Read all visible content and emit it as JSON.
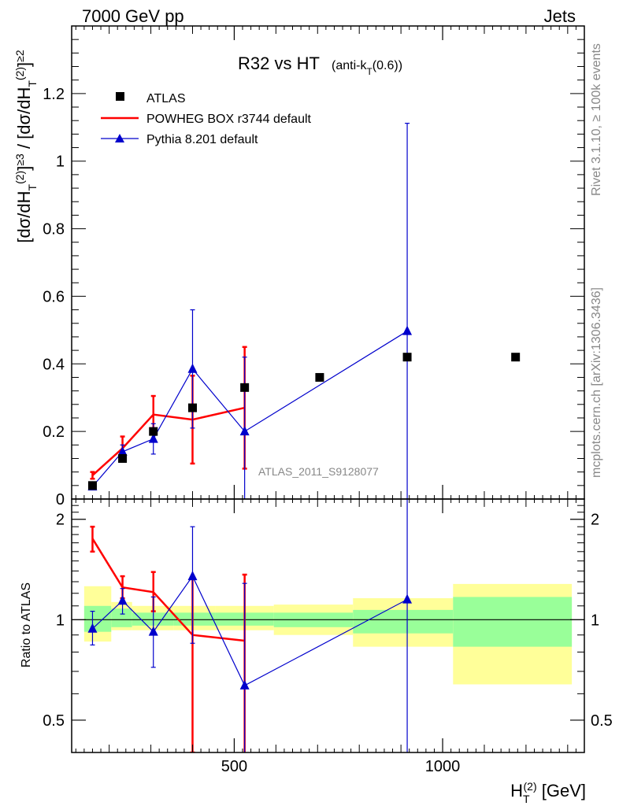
{
  "header": {
    "left": "7000 GeV pp",
    "right": "Jets"
  },
  "side_labels": {
    "rivet": "Rivet 3.1.10, ≥ 100k events",
    "mcplots": "mcplots.cern.ch [arXiv:1306.3436]"
  },
  "watermark": "ATLAS_2011_S9128077",
  "chart_data": [
    {
      "type": "scatter",
      "title": "R32 vs HT",
      "title_suffix": "(anti-k_T(0.6))",
      "ylabel": "[dσ/dH_T^(2)]^{≥3} / [dσ/dH_T^(2)]^{≥2}",
      "xlim": [
        110,
        1340
      ],
      "ylim": [
        0,
        1.4
      ],
      "y_ticks": [
        0,
        0.2,
        0.4,
        0.6,
        0.8,
        1,
        1.2
      ],
      "y_tick_labels": [
        "0",
        "0.2",
        "0.4",
        "0.6",
        "0.8",
        "1",
        "1.2"
      ],
      "legend_position": "top-left",
      "series": [
        {
          "name": "ATLAS",
          "color": "#000000",
          "style": "markers",
          "x": [
            160,
            232,
            306,
            400,
            525,
            705,
            915,
            1175
          ],
          "y": [
            0.04,
            0.12,
            0.2,
            0.27,
            0.33,
            0.36,
            0.42,
            0.42
          ]
        },
        {
          "name": "POWHEG BOX r3744 default",
          "color": "#ff0000",
          "style": "line",
          "x": [
            160,
            232,
            306,
            400,
            525
          ],
          "y": [
            0.07,
            0.15,
            0.25,
            0.235,
            0.27
          ],
          "err": [
            0.01,
            0.035,
            0.055,
            0.13,
            0.18
          ]
        },
        {
          "name": "Pythia 8.201 default",
          "color": "#0000cc",
          "style": "line-markers",
          "x": [
            160,
            232,
            306,
            400,
            525,
            915
          ],
          "y": [
            0.037,
            0.14,
            0.178,
            0.385,
            0.2,
            0.497
          ],
          "err": [
            0.008,
            0.02,
            0.045,
            0.175,
            0.22,
            0.615
          ]
        }
      ]
    },
    {
      "type": "scatter",
      "ylabel": "Ratio to ATLAS",
      "xlabel": "H_T^(2) [GeV]",
      "xlim": [
        110,
        1340
      ],
      "ylim": [
        0.4,
        2.3
      ],
      "log_y": true,
      "x_ticks": [
        500,
        1000
      ],
      "x_tick_labels": [
        "500",
        "1000"
      ],
      "y_ticks": [
        0.5,
        1,
        2
      ],
      "y_tick_labels": [
        "0.5",
        "1",
        "2"
      ],
      "reference_line": 1,
      "bands": {
        "bins": [
          [
            140,
            205
          ],
          [
            205,
            255
          ],
          [
            255,
            355
          ],
          [
            355,
            455
          ],
          [
            455,
            595
          ],
          [
            595,
            785
          ],
          [
            785,
            1025
          ],
          [
            1025,
            1310
          ]
        ],
        "inner": [
          [
            0.92,
            1.1
          ],
          [
            0.95,
            1.08
          ],
          [
            0.96,
            1.05
          ],
          [
            0.96,
            1.05
          ],
          [
            0.96,
            1.05
          ],
          [
            0.95,
            1.05
          ],
          [
            0.91,
            1.07
          ],
          [
            0.83,
            1.17
          ]
        ],
        "outer": [
          [
            0.86,
            1.26
          ],
          [
            0.93,
            1.13
          ],
          [
            0.93,
            1.1
          ],
          [
            0.93,
            1.1
          ],
          [
            0.93,
            1.1
          ],
          [
            0.9,
            1.11
          ],
          [
            0.83,
            1.16
          ],
          [
            0.64,
            1.28
          ]
        ],
        "inner_color": "#99ff99",
        "outer_color": "#ffff99"
      },
      "series": [
        {
          "name": "POWHEG BOX r3744 default",
          "color": "#ff0000",
          "x": [
            160,
            232,
            306,
            400,
            525
          ],
          "y": [
            1.75,
            1.25,
            1.21,
            0.9,
            0.865
          ],
          "err_low": [
            0.15,
            0.09,
            0.15,
            0.5,
            0.5
          ],
          "err_high": [
            0.15,
            0.1,
            0.18,
            0.45,
            0.5
          ]
        },
        {
          "name": "Pythia 8.201 default",
          "color": "#0000cc",
          "x": [
            160,
            232,
            306,
            400,
            525,
            915
          ],
          "y": [
            0.94,
            1.14,
            0.92,
            1.35,
            0.635,
            1.15
          ],
          "err_low": [
            0.1,
            0.1,
            0.2,
            0.5,
            0.3,
            0.8
          ],
          "err_high": [
            0.12,
            0.1,
            0.25,
            0.55,
            0.65,
            1.4
          ]
        }
      ]
    }
  ]
}
